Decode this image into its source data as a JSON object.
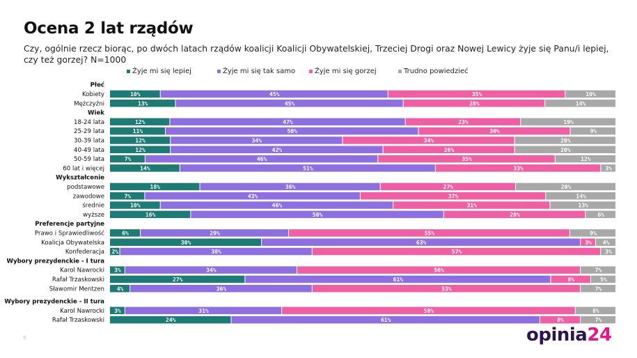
{
  "title": "Ocena 2 lat rządów",
  "question": "Czy, ogólnie rzecz biorąc, po dwóch latach rządów koalicji Koalicji Obywatelskiej, Trzeciej Drogi oraz Nowej Lewicy żyje się Panu/i lepiej, czy też gorzej? N=1000",
  "page_number": "5",
  "logo": {
    "part1": "opinia",
    "part2": "24"
  },
  "colors": {
    "lepiej": "#1e7a74",
    "tak_samo": "#8e6fe0",
    "gorzej": "#ee5fa4",
    "trudno": "#a8a8a8"
  },
  "chart_data": {
    "type": "bar",
    "orientation": "horizontal",
    "stacked": true,
    "normalized": true,
    "title": "Ocena 2 lat rządów",
    "xlim": [
      0,
      100
    ],
    "value_suffix": "%",
    "series": [
      {
        "key": "lepiej",
        "name": "Żyje mi się lepiej"
      },
      {
        "key": "tak_samo",
        "name": "Żyje mi się tak samo"
      },
      {
        "key": "gorzej",
        "name": "Żyje mi się gorzej"
      },
      {
        "key": "trudno",
        "name": "Trudno powiedzieć"
      }
    ],
    "groups": [
      {
        "name": "Płeć",
        "rows": [
          {
            "label": "Kobiety",
            "values": [
              10,
              45,
              35,
              10
            ]
          },
          {
            "label": "Mężczyźni",
            "values": [
              13,
              45,
              28,
              14
            ]
          }
        ]
      },
      {
        "name": "Wiek",
        "rows": [
          {
            "label": "18-24 lata",
            "values": [
              12,
              47,
              23,
              19
            ]
          },
          {
            "label": "25-29 lata",
            "values": [
              11,
              50,
              30,
              9
            ]
          },
          {
            "label": "30-39 lata",
            "values": [
              12,
              34,
              34,
              20
            ]
          },
          {
            "label": "40-49 lata",
            "values": [
              12,
              42,
              26,
              20
            ]
          },
          {
            "label": "50-59 lata",
            "values": [
              7,
              46,
              35,
              12
            ]
          },
          {
            "label": "60 lat i więcej",
            "values": [
              14,
              51,
              33,
              3
            ]
          }
        ]
      },
      {
        "name": "Wykształcenie",
        "rows": [
          {
            "label": "podstawowe",
            "values": [
              18,
              36,
              27,
              20
            ]
          },
          {
            "label": "zawodowe",
            "values": [
              7,
              43,
              37,
              14
            ]
          },
          {
            "label": "średnie",
            "values": [
              10,
              46,
              31,
              13
            ]
          },
          {
            "label": "wyższe",
            "values": [
              16,
              50,
              28,
              6
            ]
          }
        ]
      },
      {
        "name": "Preferencje partyjne",
        "rows": [
          {
            "label": "Prawo i Sprawiedliwość",
            "values": [
              6,
              29,
              55,
              9
            ]
          },
          {
            "label": "Koalicja Obywatelska",
            "values": [
              30,
              63,
              3,
              4
            ]
          },
          {
            "label": "Konfederacja",
            "values": [
              2,
              38,
              57,
              3
            ]
          }
        ]
      },
      {
        "name": "Wybory prezydenckie - I tura",
        "rows": [
          {
            "label": "Karol Nawrocki",
            "values": [
              3,
              34,
              56,
              7
            ]
          },
          {
            "label": "Rafał Trzaskowski",
            "values": [
              27,
              61,
              8,
              5
            ]
          },
          {
            "label": "Sławomir Mentzen",
            "values": [
              4,
              36,
              53,
              7
            ]
          }
        ]
      },
      {
        "name": "Wybory prezydenckie - II tura",
        "rows": [
          {
            "label": "Karol Nawrocki",
            "values": [
              3,
              31,
              58,
              8
            ]
          },
          {
            "label": "Rafał Trzaskowski",
            "values": [
              24,
              61,
              8,
              7
            ]
          }
        ]
      }
    ]
  }
}
